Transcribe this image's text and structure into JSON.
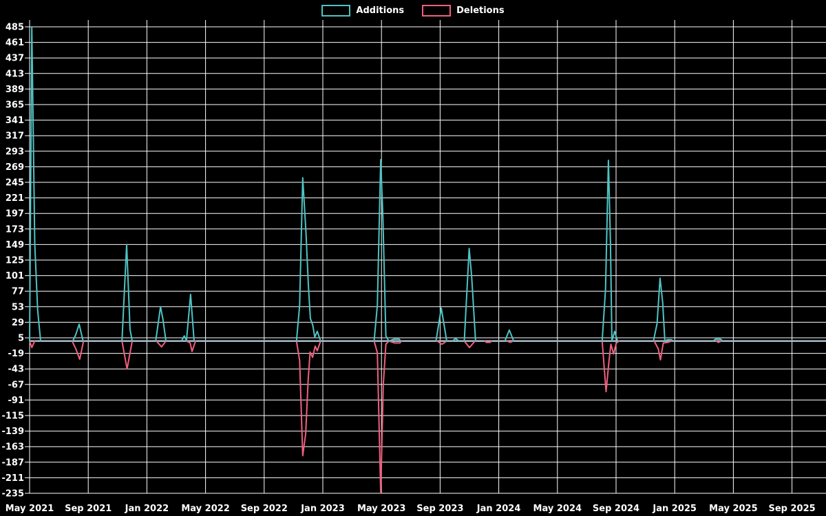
{
  "page": {
    "background": "#000000",
    "text_color": "#ffffff"
  },
  "legend": {
    "items": [
      {
        "label": "Additions",
        "color": "#4ec4c4"
      },
      {
        "label": "Deletions",
        "color": "#f0607e"
      }
    ]
  },
  "chart_data": {
    "type": "line",
    "title": "",
    "xlabel": "",
    "ylabel": "",
    "grid": {
      "show": true,
      "color": "#ffffff"
    },
    "legend_position": "top-center",
    "background": "#000000",
    "zero_line": {
      "value": 0,
      "color": "#a3b5c3"
    },
    "x_axis": {
      "unit": "months since May 2021",
      "tick_labels": [
        "May 2021",
        "Sep 2021",
        "Jan 2022",
        "May 2022",
        "Sep 2022",
        "Jan 2023",
        "May 2023",
        "Sep 2023",
        "Jan 2024",
        "May 2024",
        "Sep 2024",
        "Jan 2025",
        "May 2025",
        "Sep 2025"
      ],
      "tick_month_offsets": [
        0,
        4,
        8,
        12,
        16,
        20,
        24,
        28,
        32,
        36,
        40,
        44,
        48,
        52
      ]
    },
    "y_axis": {
      "min": -235,
      "max": 485,
      "step": 24,
      "ticks": [
        485,
        461,
        437,
        413,
        389,
        365,
        341,
        317,
        293,
        269,
        245,
        221,
        197,
        173,
        149,
        125,
        101,
        77,
        53,
        29,
        5,
        -19,
        -43,
        -67,
        -91,
        -115,
        -139,
        -163,
        -187,
        -211,
        -235
      ]
    },
    "series": [
      {
        "name": "Additions",
        "color": "#4ec4c4",
        "points": [
          [
            0,
            0
          ],
          [
            0.15,
            485
          ],
          [
            0.35,
            150
          ],
          [
            0.55,
            48
          ],
          [
            0.75,
            0
          ],
          [
            2.95,
            0
          ],
          [
            3.15,
            10
          ],
          [
            3.38,
            26
          ],
          [
            3.65,
            0
          ],
          [
            6.3,
            0
          ],
          [
            6.62,
            149
          ],
          [
            6.85,
            18
          ],
          [
            7.0,
            0
          ],
          [
            8.6,
            0
          ],
          [
            8.93,
            53
          ],
          [
            9.1,
            33
          ],
          [
            9.3,
            0
          ],
          [
            10.35,
            0
          ],
          [
            10.55,
            8
          ],
          [
            10.7,
            1
          ],
          [
            10.98,
            72
          ],
          [
            11.22,
            0
          ],
          [
            18.2,
            0
          ],
          [
            18.42,
            55
          ],
          [
            18.63,
            252
          ],
          [
            18.85,
            168
          ],
          [
            19.02,
            84
          ],
          [
            19.15,
            35
          ],
          [
            19.32,
            24
          ],
          [
            19.45,
            6
          ],
          [
            19.62,
            15
          ],
          [
            19.85,
            0
          ],
          [
            23.5,
            0
          ],
          [
            23.72,
            55
          ],
          [
            23.95,
            280
          ],
          [
            24.1,
            190
          ],
          [
            24.3,
            8
          ],
          [
            24.5,
            0
          ],
          [
            24.85,
            3
          ],
          [
            25.2,
            3
          ],
          [
            25.32,
            0
          ],
          [
            27.72,
            0
          ],
          [
            28.08,
            51
          ],
          [
            28.45,
            0
          ],
          [
            28.85,
            0
          ],
          [
            29.05,
            4
          ],
          [
            29.28,
            0
          ],
          [
            29.65,
            0
          ],
          [
            29.98,
            143
          ],
          [
            30.15,
            100
          ],
          [
            30.42,
            0
          ],
          [
            32.42,
            0
          ],
          [
            32.72,
            17
          ],
          [
            33.02,
            0
          ],
          [
            39.05,
            0
          ],
          [
            39.28,
            80
          ],
          [
            39.48,
            279
          ],
          [
            39.62,
            150
          ],
          [
            39.72,
            0
          ],
          [
            39.9,
            15
          ],
          [
            40.1,
            0
          ],
          [
            42.55,
            0
          ],
          [
            42.8,
            27
          ],
          [
            43.0,
            97
          ],
          [
            43.18,
            60
          ],
          [
            43.33,
            0
          ],
          [
            43.48,
            2
          ],
          [
            43.78,
            2
          ],
          [
            43.9,
            0
          ],
          [
            46.62,
            0
          ],
          [
            46.78,
            3
          ],
          [
            47.12,
            3
          ],
          [
            47.28,
            0
          ],
          [
            54.3,
            0
          ]
        ]
      },
      {
        "name": "Deletions",
        "color": "#f0607e",
        "points": [
          [
            0,
            0
          ],
          [
            0.15,
            -10
          ],
          [
            0.35,
            0
          ],
          [
            2.9,
            0
          ],
          [
            3.15,
            -12
          ],
          [
            3.42,
            -28
          ],
          [
            3.68,
            0
          ],
          [
            6.3,
            0
          ],
          [
            6.65,
            -43
          ],
          [
            7.0,
            0
          ],
          [
            8.65,
            0
          ],
          [
            9.0,
            -9
          ],
          [
            9.3,
            0
          ],
          [
            10.7,
            0
          ],
          [
            10.95,
            -3
          ],
          [
            11.08,
            -16
          ],
          [
            11.32,
            0
          ],
          [
            18.2,
            0
          ],
          [
            18.42,
            -30
          ],
          [
            18.63,
            -177
          ],
          [
            18.83,
            -143
          ],
          [
            19.0,
            -60
          ],
          [
            19.13,
            -17
          ],
          [
            19.3,
            -25
          ],
          [
            19.48,
            -8
          ],
          [
            19.62,
            -15
          ],
          [
            19.85,
            0
          ],
          [
            23.5,
            0
          ],
          [
            23.72,
            -18
          ],
          [
            23.95,
            -235
          ],
          [
            24.12,
            -68
          ],
          [
            24.3,
            -5
          ],
          [
            24.5,
            0
          ],
          [
            24.9,
            -3
          ],
          [
            25.25,
            -3
          ],
          [
            25.38,
            0
          ],
          [
            27.8,
            0
          ],
          [
            28.12,
            -5
          ],
          [
            28.45,
            0
          ],
          [
            29.65,
            0
          ],
          [
            30.0,
            -10
          ],
          [
            30.38,
            0
          ],
          [
            31.05,
            0
          ],
          [
            31.15,
            -2
          ],
          [
            31.42,
            -2
          ],
          [
            31.5,
            0
          ],
          [
            32.55,
            0
          ],
          [
            32.78,
            -2
          ],
          [
            33.0,
            0
          ],
          [
            39.05,
            0
          ],
          [
            39.32,
            -78
          ],
          [
            39.52,
            -30
          ],
          [
            39.65,
            -5
          ],
          [
            39.83,
            -20
          ],
          [
            40.02,
            -3
          ],
          [
            40.22,
            0
          ],
          [
            42.6,
            0
          ],
          [
            42.88,
            -12
          ],
          [
            43.03,
            -29
          ],
          [
            43.22,
            -3
          ],
          [
            43.55,
            -2
          ],
          [
            43.8,
            0
          ],
          [
            46.82,
            0
          ],
          [
            46.98,
            -2
          ],
          [
            47.18,
            0
          ],
          [
            54.3,
            0
          ]
        ]
      }
    ]
  }
}
